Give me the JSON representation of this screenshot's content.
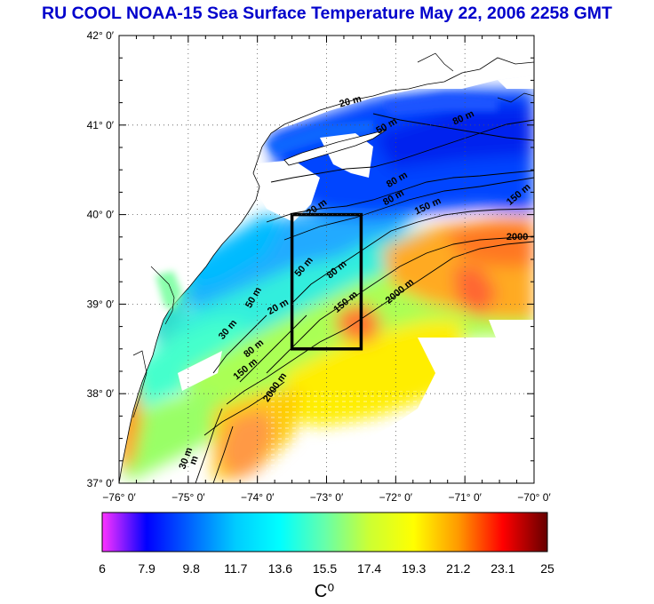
{
  "title": "RU COOL  NOAA-15 Sea Surface Temperature May 22, 2006 2258 GMT",
  "map": {
    "lon_range": [
      -76,
      -70
    ],
    "lat_range": [
      37,
      42
    ],
    "lon_ticks": [
      {
        "value": -76,
        "label": "−76° 0′"
      },
      {
        "value": -75,
        "label": "−75° 0′"
      },
      {
        "value": -74,
        "label": "−74° 0′"
      },
      {
        "value": -73,
        "label": "−73° 0′"
      },
      {
        "value": -72,
        "label": "−72° 0′"
      },
      {
        "value": -71,
        "label": "−71° 0′"
      },
      {
        "value": -70,
        "label": "−70° 0′"
      }
    ],
    "lat_ticks": [
      {
        "value": 42,
        "label": "42° 0′"
      },
      {
        "value": 41,
        "label": "41° 0′"
      },
      {
        "value": 40,
        "label": "40° 0′"
      },
      {
        "value": 39,
        "label": "39° 0′"
      },
      {
        "value": 38,
        "label": "38° 0′"
      },
      {
        "value": 37,
        "label": "37° 0′"
      }
    ],
    "study_box": {
      "lon": [
        -73.5,
        -72.5
      ],
      "lat": [
        38.5,
        40.0
      ]
    },
    "contour_labels": [
      {
        "text": "20 m",
        "lon": -72.8,
        "lat": 41.2,
        "rot": -15
      },
      {
        "text": "50 m",
        "lon": -72.25,
        "lat": 40.9,
        "rot": -30
      },
      {
        "text": "80 m",
        "lon": -71.15,
        "lat": 41.0,
        "rot": -25
      },
      {
        "text": "80 m",
        "lon": -72.1,
        "lat": 40.3,
        "rot": -30
      },
      {
        "text": "80 m",
        "lon": -72.15,
        "lat": 40.1,
        "rot": -30
      },
      {
        "text": "150 m",
        "lon": -71.7,
        "lat": 40.0,
        "rot": -25
      },
      {
        "text": "150 m",
        "lon": -70.35,
        "lat": 40.1,
        "rot": -40
      },
      {
        "text": "2000",
        "lon": -70.4,
        "lat": 39.72,
        "rot": 0
      },
      {
        "text": "2000 m",
        "lon": -72.1,
        "lat": 39.0,
        "rot": -40
      },
      {
        "text": "20 m",
        "lon": -73.25,
        "lat": 39.98,
        "rot": -35
      },
      {
        "text": "50 m",
        "lon": -73.4,
        "lat": 39.3,
        "rot": -50
      },
      {
        "text": "80 m",
        "lon": -72.95,
        "lat": 39.28,
        "rot": -40
      },
      {
        "text": "150 m",
        "lon": -72.85,
        "lat": 38.9,
        "rot": -40
      },
      {
        "text": "50 m",
        "lon": -74.1,
        "lat": 38.95,
        "rot": -60
      },
      {
        "text": "20 m",
        "lon": -73.82,
        "lat": 38.88,
        "rot": -30
      },
      {
        "text": "30 m",
        "lon": -74.5,
        "lat": 38.6,
        "rot": -50
      },
      {
        "text": "80 m",
        "lon": -74.15,
        "lat": 38.4,
        "rot": -40
      },
      {
        "text": "150 m",
        "lon": -74.3,
        "lat": 38.15,
        "rot": -40
      },
      {
        "text": "2000 m",
        "lon": -73.85,
        "lat": 37.9,
        "rot": -55
      },
      {
        "text": "30 m",
        "lon": -75.05,
        "lat": 37.15,
        "rot": -70
      },
      {
        "text": "m",
        "lon": -74.9,
        "lat": 37.2,
        "rot": -70
      }
    ]
  },
  "colorbar": {
    "unit_label": "C⁰",
    "ticks": [
      "6",
      "7.9",
      "9.8",
      "11.7",
      "13.6",
      "15.5",
      "17.4",
      "19.3",
      "21.2",
      "23.1",
      "25"
    ],
    "colors": [
      "#ff33ff",
      "#0000ff",
      "#0066ff",
      "#00ccff",
      "#00ffff",
      "#66ffaa",
      "#ccff33",
      "#ffff00",
      "#ff9900",
      "#ff0000",
      "#660000"
    ]
  }
}
